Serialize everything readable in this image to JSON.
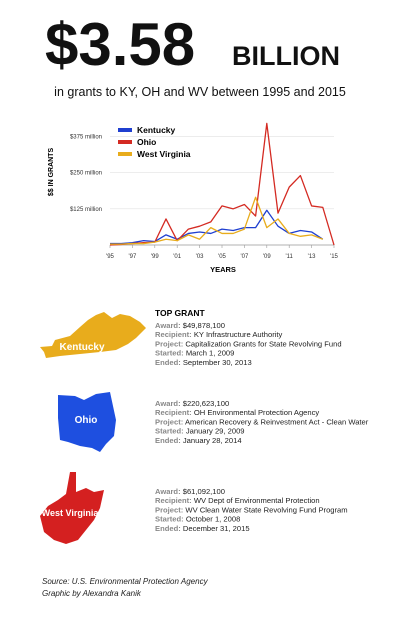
{
  "header": {
    "amount": "$3.58",
    "unit": "BILLION",
    "subtitle": "in grants to KY, OH and WV between 1995 and 2015"
  },
  "chart_data": {
    "type": "line",
    "y_label": "$$ IN GRANTS",
    "x_label": "YEARS",
    "x": [
      1995,
      1996,
      1997,
      1998,
      1999,
      2000,
      2001,
      2002,
      2003,
      2004,
      2005,
      2006,
      2007,
      2008,
      2009,
      2010,
      2011,
      2012,
      2013,
      2014,
      2015
    ],
    "xlim": [
      1995,
      2015
    ],
    "xticks": [
      {
        "value": 1995,
        "label": "'95"
      },
      {
        "value": 1997,
        "label": "'97"
      },
      {
        "value": 1999,
        "label": "'99"
      },
      {
        "value": 2001,
        "label": "'01"
      },
      {
        "value": 2003,
        "label": "'03"
      },
      {
        "value": 2005,
        "label": "'05"
      },
      {
        "value": 2007,
        "label": "'07"
      },
      {
        "value": 2009,
        "label": "'09"
      },
      {
        "value": 2011,
        "label": "'11"
      },
      {
        "value": 2013,
        "label": "'13"
      },
      {
        "value": 2015,
        "label": "'15"
      }
    ],
    "ylim": [
      0,
      425
    ],
    "yticks": [
      {
        "value": 125,
        "label": "$125 million"
      },
      {
        "value": 250,
        "label": "$250 million"
      },
      {
        "value": 375,
        "label": "$375 million"
      }
    ],
    "grid": true,
    "legend": "top-left",
    "series": [
      {
        "name": "Kentucky",
        "color": "#1f3fd0",
        "values": [
          5,
          5,
          8,
          15,
          12,
          35,
          20,
          40,
          45,
          40,
          55,
          50,
          60,
          60,
          120,
          65,
          40,
          50,
          45,
          20,
          null
        ]
      },
      {
        "name": "Ohio",
        "color": "#d42a22",
        "values": [
          0,
          2,
          5,
          8,
          10,
          90,
          15,
          55,
          65,
          80,
          135,
          125,
          140,
          100,
          420,
          110,
          200,
          240,
          135,
          130,
          0
        ]
      },
      {
        "name": "West Virginia",
        "color": "#e8ac1c",
        "values": [
          3,
          3,
          5,
          5,
          10,
          20,
          15,
          35,
          20,
          60,
          40,
          40,
          55,
          165,
          60,
          90,
          40,
          30,
          35,
          20,
          null
        ]
      }
    ]
  },
  "top_grant": "TOP GRANT",
  "grants": [
    {
      "state": "Kentucky",
      "fields": [
        {
          "label": "Award:",
          "value": "$49,878,100"
        },
        {
          "label": "Recipient:",
          "value": "KY Infrastructure Authority"
        },
        {
          "label": "Project:",
          "value": "Capitalization Grants for State Revolving Fund"
        },
        {
          "label": "Started:",
          "value": "March 1, 2009"
        },
        {
          "label": "Ended:",
          "value": "September 30, 2013"
        }
      ]
    },
    {
      "state": "Ohio",
      "fields": [
        {
          "label": "Award:",
          "value": "$220,623,100"
        },
        {
          "label": "Recipient:",
          "value": "OH Environmental Protection Agency"
        },
        {
          "label": "Project:",
          "value": "American Recovery & Reinvestment Act - Clean Water"
        },
        {
          "label": "Started:",
          "value": "January 29, 2009"
        },
        {
          "label": "Ended:",
          "value": "January 28, 2014"
        }
      ]
    },
    {
      "state": "West Virginia",
      "fields": [
        {
          "label": "Award:",
          "value": "$61,092,100"
        },
        {
          "label": "Recipient:",
          "value": "WV Dept of Environmental Protection"
        },
        {
          "label": "Project:",
          "value": "WV Clean Water State Revolving Fund Program"
        },
        {
          "label": "Started:",
          "value": "October 1, 2008"
        },
        {
          "label": "Ended:",
          "value": "December 31, 2015"
        }
      ]
    }
  ],
  "footer": {
    "source": "Source: U.S. Environmental Protection Agency",
    "credit": "Graphic by Alexandra Kanik"
  }
}
